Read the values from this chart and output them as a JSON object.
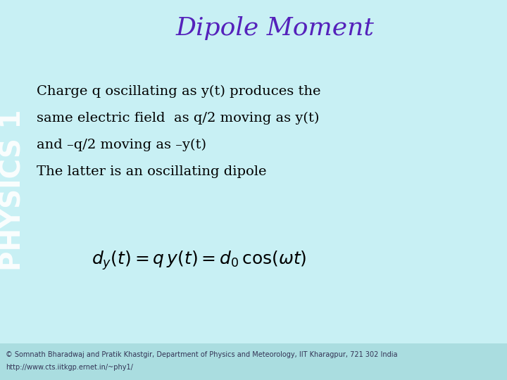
{
  "title": "Dipole Moment",
  "title_color": "#5522BB",
  "title_fontsize": 26,
  "background_color": "#C8F0F4",
  "sidebar_color": "#C8F0F4",
  "sidebar_text": "PHYSICS 1",
  "sidebar_text_color": "#FFFFFF",
  "sidebar_text_alpha": 0.9,
  "body_lines": [
    "Charge q oscillating as y(t) produces the",
    "same electric field  as q/2 moving as y(t)",
    "and –q/2 moving as –y(t)",
    "The latter is an oscillating dipole"
  ],
  "body_fontsize": 14,
  "body_color": "#000000",
  "formula": "$d_y(t) = q\\, y(t) = d_0\\, \\cos(\\omega t)$",
  "formula_fontsize": 18,
  "formula_color": "#000000",
  "footer_line1": "© Somnath Bharadwaj and Pratik Khastgir, Department of Physics and Meteorology, IIT Kharagpur, 721 302 India",
  "footer_line2": "http://www.cts.iitkgp.ernet.in/~phy1/",
  "footer_fontsize": 7,
  "footer_color": "#333355",
  "footer_bg_color": "#AADDE0"
}
